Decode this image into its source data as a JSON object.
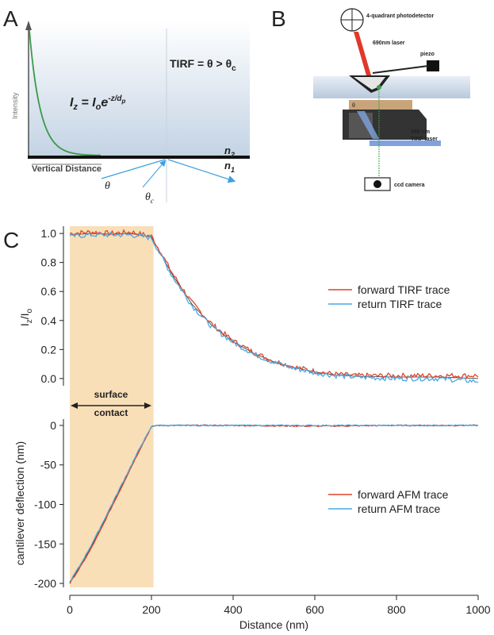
{
  "panelA": {
    "letter": "A",
    "intensity_label": "Intensity",
    "vertical_distance_label": "Vertical Distance",
    "formula_main": "I",
    "formula_sub_z": "z",
    "formula_eq": " = I",
    "formula_sub_o": "o",
    "formula_e": "e",
    "formula_exp": "-z/d",
    "formula_exp_sub": "p",
    "tirf_text": "TIRF = θ > θ",
    "tirf_sub": "c",
    "n2": "n",
    "n2_sub": "2",
    "n1": "n",
    "n1_sub": "1",
    "theta": "θ",
    "theta_c": "θ",
    "theta_c_sub": "c",
    "colors": {
      "decay": "#3a9a48",
      "ray": "#3ea0e0",
      "gradient_top": "#ffffff",
      "gradient_bottom": "#c9d7e6"
    }
  },
  "panelB": {
    "letter": "B",
    "photodetector": "4-quadrant photodetector",
    "laser690": "690nm laser",
    "piezo": "piezo",
    "theta": "θ",
    "tirf488_line1": "488 nm",
    "tirf488_line2": "TIRF laser",
    "camera": "ccd camera",
    "colors": {
      "red_laser": "#e0392b",
      "blue_laser": "#7fa2dd",
      "tan": "#c8a47a",
      "green": "#3aa040"
    }
  },
  "panelC": {
    "letter": "C",
    "surface_contact_line1": "surface",
    "surface_contact_line2": "contact",
    "highlight_color": "#f8dfb8",
    "forward_color": "#e0442a",
    "return_color": "#4aa8e0"
  },
  "chart_data": [
    {
      "type": "line",
      "ylabel": "Iz/Io",
      "ylabel_main": "I",
      "ylabel_sub1": "z",
      "ylabel_slash": "/I",
      "ylabel_sub2": "o",
      "ylim": [
        -0.05,
        1.05
      ],
      "yticks": [
        "1.0",
        "0.8",
        "0.6",
        "0.4",
        "0.2",
        "0.0"
      ],
      "yticks_values": [
        1.0,
        0.8,
        0.6,
        0.4,
        0.2,
        0.0
      ],
      "legend_placement": "right",
      "x": [
        0,
        50,
        100,
        150,
        200,
        225,
        250,
        300,
        350,
        400,
        450,
        500,
        550,
        600,
        650,
        700,
        800,
        900,
        1000
      ],
      "series": [
        {
          "name": "forward TIRF trace",
          "values": [
            1.0,
            1.01,
            1.0,
            1.01,
            0.98,
            0.86,
            0.73,
            0.52,
            0.37,
            0.26,
            0.18,
            0.12,
            0.08,
            0.05,
            0.03,
            0.02,
            0.02,
            0.02,
            0.02
          ]
        },
        {
          "name": "return TIRF trace",
          "values": [
            0.98,
            0.99,
            0.99,
            0.99,
            0.97,
            0.84,
            0.71,
            0.5,
            0.35,
            0.25,
            0.17,
            0.11,
            0.07,
            0.04,
            0.02,
            0.01,
            0.0,
            0.0,
            -0.02
          ]
        }
      ]
    },
    {
      "type": "line",
      "ylabel": "cantilever deflection (nm)",
      "xlabel": "Distance (nm)",
      "ylim": [
        -205,
        8
      ],
      "xlim": [
        0,
        1000
      ],
      "yticks": [
        "0",
        "-50",
        "-100",
        "-150",
        "-200"
      ],
      "yticks_values": [
        0,
        -50,
        -100,
        -150,
        -200
      ],
      "xticks": [
        "0",
        "200",
        "400",
        "600",
        "800",
        "1000"
      ],
      "xticks_values": [
        0,
        200,
        400,
        600,
        800,
        1000
      ],
      "legend_placement": "right",
      "highlight_range": [
        0,
        205
      ],
      "x": [
        0,
        25,
        50,
        75,
        100,
        125,
        150,
        175,
        200,
        210,
        250,
        400,
        600,
        800,
        1000
      ],
      "series": [
        {
          "name": "forward AFM trace",
          "values": [
            -200,
            -180,
            -158,
            -133,
            -106,
            -80,
            -53,
            -27,
            -2,
            0,
            0,
            0,
            -1,
            0,
            0
          ]
        },
        {
          "name": "return AFM trace",
          "values": [
            -198,
            -177,
            -154,
            -129,
            -103,
            -77,
            -51,
            -25,
            -2,
            0,
            0,
            0,
            0,
            0,
            0
          ]
        }
      ]
    }
  ]
}
